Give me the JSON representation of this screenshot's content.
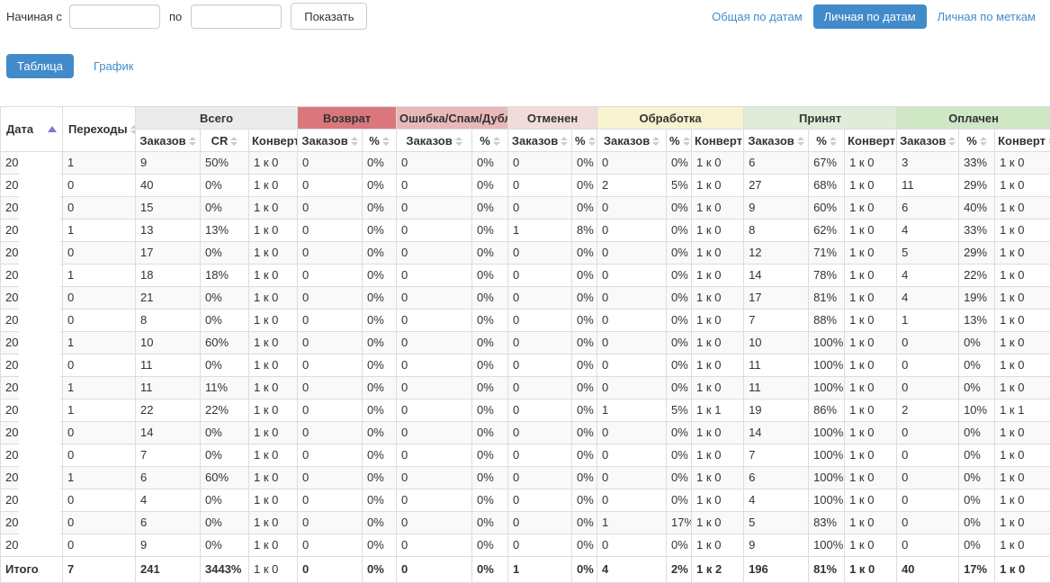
{
  "colors": {
    "link_accent": "#428bca",
    "active_pill_bg": "#428bca",
    "stripe_row_bg": "#f9f9f9",
    "table_border": "#dddddd",
    "sort_active_arrow": "#7a77d6"
  },
  "filter_bar": {
    "from_label": "Начиная с",
    "from_value": "",
    "to_label": "по",
    "to_value": "",
    "submit": "Показать"
  },
  "report_nav": {
    "items": [
      {
        "label": "Общая по датам",
        "active": false
      },
      {
        "label": "Личная по датам",
        "active": true
      },
      {
        "label": "Личная по меткам",
        "active": false
      }
    ]
  },
  "view_tabs": {
    "items": [
      {
        "label": "Таблица",
        "active": true
      },
      {
        "label": "График",
        "active": false
      }
    ]
  },
  "table": {
    "date_header": "Дата",
    "transitions_header": "Переходы",
    "groups": [
      {
        "label": "Всего",
        "bg": "#ebebeb",
        "cols": [
          "Заказов",
          "CR",
          "Конверт"
        ]
      },
      {
        "label": "Возврат",
        "bg": "#d9777c",
        "cols": [
          "Заказов",
          "%"
        ]
      },
      {
        "label": "Ошибка/Спам/Дубль",
        "bg": "#e9b9ba",
        "cols": [
          "Заказов",
          "%"
        ]
      },
      {
        "label": "Отменен",
        "bg": "#f0dcdb",
        "cols": [
          "Заказов",
          "%"
        ]
      },
      {
        "label": "Обработка",
        "bg": "#f7f2cf",
        "cols": [
          "Заказов",
          "%",
          "Конверт"
        ]
      },
      {
        "label": "Принят",
        "bg": "#e0ecd9",
        "cols": [
          "Заказов",
          "%",
          "Конверт"
        ]
      },
      {
        "label": "Оплачен",
        "bg": "#cfe7c5",
        "cols": [
          "Заказов",
          "%",
          "Конверт"
        ]
      }
    ],
    "rows": [
      [
        "20",
        "1",
        "9",
        "50%",
        "1 к 0",
        "0",
        "0%",
        "0",
        "0%",
        "0",
        "0%",
        "0",
        "0%",
        "1 к 0",
        "6",
        "67%",
        "1 к 0",
        "3",
        "33%",
        "1 к 0"
      ],
      [
        "20",
        "0",
        "40",
        "0%",
        "1 к 0",
        "0",
        "0%",
        "0",
        "0%",
        "0",
        "0%",
        "2",
        "5%",
        "1 к 0",
        "27",
        "68%",
        "1 к 0",
        "11",
        "29%",
        "1 к 0"
      ],
      [
        "20",
        "0",
        "15",
        "0%",
        "1 к 0",
        "0",
        "0%",
        "0",
        "0%",
        "0",
        "0%",
        "0",
        "0%",
        "1 к 0",
        "9",
        "60%",
        "1 к 0",
        "6",
        "40%",
        "1 к 0"
      ],
      [
        "20",
        "1",
        "13",
        "13%",
        "1 к 0",
        "0",
        "0%",
        "0",
        "0%",
        "1",
        "8%",
        "0",
        "0%",
        "1 к 0",
        "8",
        "62%",
        "1 к 0",
        "4",
        "33%",
        "1 к 0"
      ],
      [
        "20",
        "0",
        "17",
        "0%",
        "1 к 0",
        "0",
        "0%",
        "0",
        "0%",
        "0",
        "0%",
        "0",
        "0%",
        "1 к 0",
        "12",
        "71%",
        "1 к 0",
        "5",
        "29%",
        "1 к 0"
      ],
      [
        "20",
        "1",
        "18",
        "18%",
        "1 к 0",
        "0",
        "0%",
        "0",
        "0%",
        "0",
        "0%",
        "0",
        "0%",
        "1 к 0",
        "14",
        "78%",
        "1 к 0",
        "4",
        "22%",
        "1 к 0"
      ],
      [
        "20",
        "0",
        "21",
        "0%",
        "1 к 0",
        "0",
        "0%",
        "0",
        "0%",
        "0",
        "0%",
        "0",
        "0%",
        "1 к 0",
        "17",
        "81%",
        "1 к 0",
        "4",
        "19%",
        "1 к 0"
      ],
      [
        "20",
        "0",
        "8",
        "0%",
        "1 к 0",
        "0",
        "0%",
        "0",
        "0%",
        "0",
        "0%",
        "0",
        "0%",
        "1 к 0",
        "7",
        "88%",
        "1 к 0",
        "1",
        "13%",
        "1 к 0"
      ],
      [
        "20",
        "1",
        "10",
        "60%",
        "1 к 0",
        "0",
        "0%",
        "0",
        "0%",
        "0",
        "0%",
        "0",
        "0%",
        "1 к 0",
        "10",
        "100%",
        "1 к 0",
        "0",
        "0%",
        "1 к 0"
      ],
      [
        "20",
        "0",
        "11",
        "0%",
        "1 к 0",
        "0",
        "0%",
        "0",
        "0%",
        "0",
        "0%",
        "0",
        "0%",
        "1 к 0",
        "11",
        "100%",
        "1 к 0",
        "0",
        "0%",
        "1 к 0"
      ],
      [
        "20",
        "1",
        "11",
        "11%",
        "1 к 0",
        "0",
        "0%",
        "0",
        "0%",
        "0",
        "0%",
        "0",
        "0%",
        "1 к 0",
        "11",
        "100%",
        "1 к 0",
        "0",
        "0%",
        "1 к 0"
      ],
      [
        "20",
        "1",
        "22",
        "22%",
        "1 к 0",
        "0",
        "0%",
        "0",
        "0%",
        "0",
        "0%",
        "1",
        "5%",
        "1 к 1",
        "19",
        "86%",
        "1 к 0",
        "2",
        "10%",
        "1 к 1"
      ],
      [
        "20",
        "0",
        "14",
        "0%",
        "1 к 0",
        "0",
        "0%",
        "0",
        "0%",
        "0",
        "0%",
        "0",
        "0%",
        "1 к 0",
        "14",
        "100%",
        "1 к 0",
        "0",
        "0%",
        "1 к 0"
      ],
      [
        "20",
        "0",
        "7",
        "0%",
        "1 к 0",
        "0",
        "0%",
        "0",
        "0%",
        "0",
        "0%",
        "0",
        "0%",
        "1 к 0",
        "7",
        "100%",
        "1 к 0",
        "0",
        "0%",
        "1 к 0"
      ],
      [
        "20",
        "1",
        "6",
        "60%",
        "1 к 0",
        "0",
        "0%",
        "0",
        "0%",
        "0",
        "0%",
        "0",
        "0%",
        "1 к 0",
        "6",
        "100%",
        "1 к 0",
        "0",
        "0%",
        "1 к 0"
      ],
      [
        "20",
        "0",
        "4",
        "0%",
        "1 к 0",
        "0",
        "0%",
        "0",
        "0%",
        "0",
        "0%",
        "0",
        "0%",
        "1 к 0",
        "4",
        "100%",
        "1 к 0",
        "0",
        "0%",
        "1 к 0"
      ],
      [
        "20",
        "0",
        "6",
        "0%",
        "1 к 0",
        "0",
        "0%",
        "0",
        "0%",
        "0",
        "0%",
        "1",
        "17%",
        "1 к 0",
        "5",
        "83%",
        "1 к 0",
        "0",
        "0%",
        "1 к 0"
      ],
      [
        "20",
        "0",
        "9",
        "0%",
        "1 к 0",
        "0",
        "0%",
        "0",
        "0%",
        "0",
        "0%",
        "0",
        "0%",
        "1 к 0",
        "9",
        "100%",
        "1 к 0",
        "0",
        "0%",
        "1 к 0"
      ]
    ],
    "totals": [
      "Итого",
      "7",
      "241",
      "3443%",
      "1 к 0",
      "0",
      "0%",
      "0",
      "0%",
      "1",
      "0%",
      "4",
      "2%",
      "1 к 2",
      "196",
      "81%",
      "1 к 0",
      "40",
      "17%",
      "1 к 0"
    ]
  }
}
